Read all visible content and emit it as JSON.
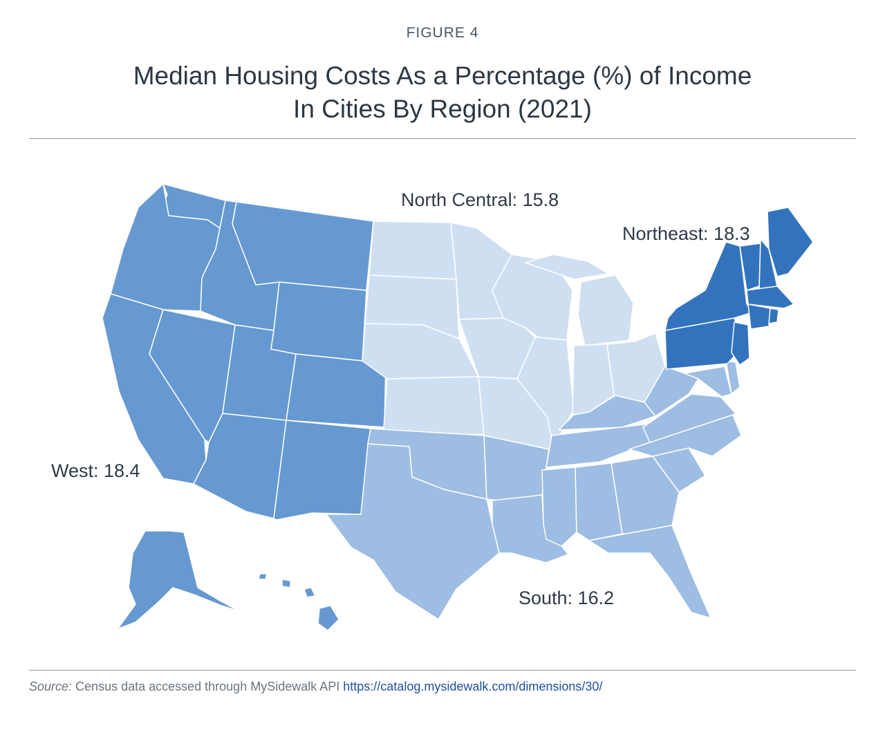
{
  "figure_label": "FIGURE 4",
  "title_line1": "Median Housing Costs As a Percentage (%) of Income",
  "title_line2": "In Cities By Region (2021)",
  "colors": {
    "west": "#6699d1",
    "north_central": "#cfdff2",
    "south": "#9dbde3",
    "northeast": "#3373bd",
    "border": "#ffffff"
  },
  "regions": [
    {
      "key": "north_central",
      "label": "North Central: 15.8",
      "value": 15.8
    },
    {
      "key": "northeast",
      "label": "Northeast: 18.3",
      "value": 18.3
    },
    {
      "key": "west",
      "label": "West: 18.4",
      "value": 18.4
    },
    {
      "key": "south",
      "label": "South: 16.2",
      "value": 16.2
    }
  ],
  "source": {
    "prefix": "Source:",
    "text": " Census data accessed through MySidewalk API ",
    "link": "https://catalog.mysidewalk.com/dimensions/30/"
  }
}
